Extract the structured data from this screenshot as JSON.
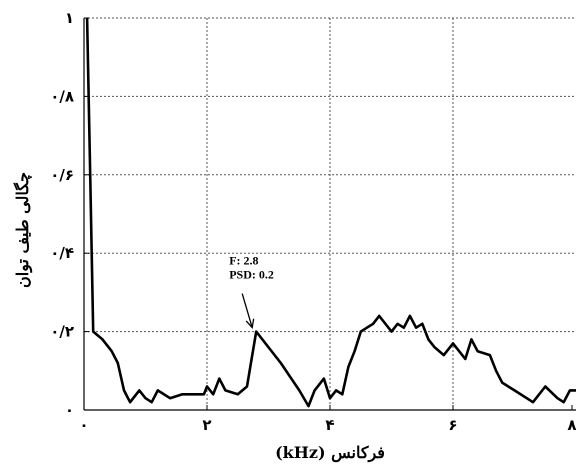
{
  "chart_data": {
    "type": "line",
    "title": "",
    "xlabel": "فرکانس (kHz)",
    "ylabel": "چگالی طیف توان",
    "xlim": [
      0,
      8
    ],
    "ylim": [
      0,
      1
    ],
    "x_ticks": [
      0,
      2,
      4,
      6,
      8
    ],
    "x_tick_labels": [
      "٠",
      "٢",
      "۴",
      "۶",
      "٨"
    ],
    "y_ticks": [
      0,
      0.2,
      0.4,
      0.6,
      0.8,
      1
    ],
    "y_tick_labels": [
      "٠",
      "٠/٢",
      "٠/۴",
      "٠/۶",
      "٠/٨",
      "١"
    ],
    "grid": true,
    "series": [
      {
        "x": [
          0.05,
          0.1,
          0.15,
          0.3,
          0.45,
          0.55,
          0.65,
          0.75,
          0.9,
          1.0,
          1.1,
          1.2,
          1.4,
          1.6,
          1.8,
          1.95,
          2.0,
          2.1,
          2.2,
          2.3,
          2.5,
          2.65,
          2.8,
          3.2,
          3.5,
          3.65,
          3.75,
          3.9,
          4.0,
          4.1,
          4.2,
          4.3,
          4.4,
          4.5,
          4.6,
          4.7,
          4.8,
          5.0,
          5.1,
          5.2,
          5.3,
          5.4,
          5.5,
          5.6,
          5.7,
          5.85,
          6.0,
          6.2,
          6.3,
          6.4,
          6.6,
          6.7,
          6.8,
          7.0,
          7.3,
          7.5,
          7.7,
          7.8,
          7.9,
          8.0
        ],
        "y": [
          1.0,
          0.6,
          0.2,
          0.18,
          0.15,
          0.12,
          0.05,
          0.02,
          0.05,
          0.03,
          0.02,
          0.05,
          0.03,
          0.04,
          0.04,
          0.04,
          0.06,
          0.04,
          0.08,
          0.05,
          0.04,
          0.06,
          0.2,
          0.12,
          0.05,
          0.01,
          0.05,
          0.08,
          0.03,
          0.05,
          0.04,
          0.11,
          0.15,
          0.2,
          0.21,
          0.22,
          0.24,
          0.2,
          0.22,
          0.21,
          0.24,
          0.21,
          0.22,
          0.18,
          0.16,
          0.14,
          0.17,
          0.13,
          0.18,
          0.15,
          0.14,
          0.1,
          0.07,
          0.05,
          0.02,
          0.06,
          0.03,
          0.02,
          0.05,
          0.05
        ]
      }
    ],
    "annotations": [
      {
        "text_line1": "F: 2.8",
        "text_line2": "PSD: 0.2",
        "x": 2.8,
        "y": 0.2
      }
    ]
  }
}
